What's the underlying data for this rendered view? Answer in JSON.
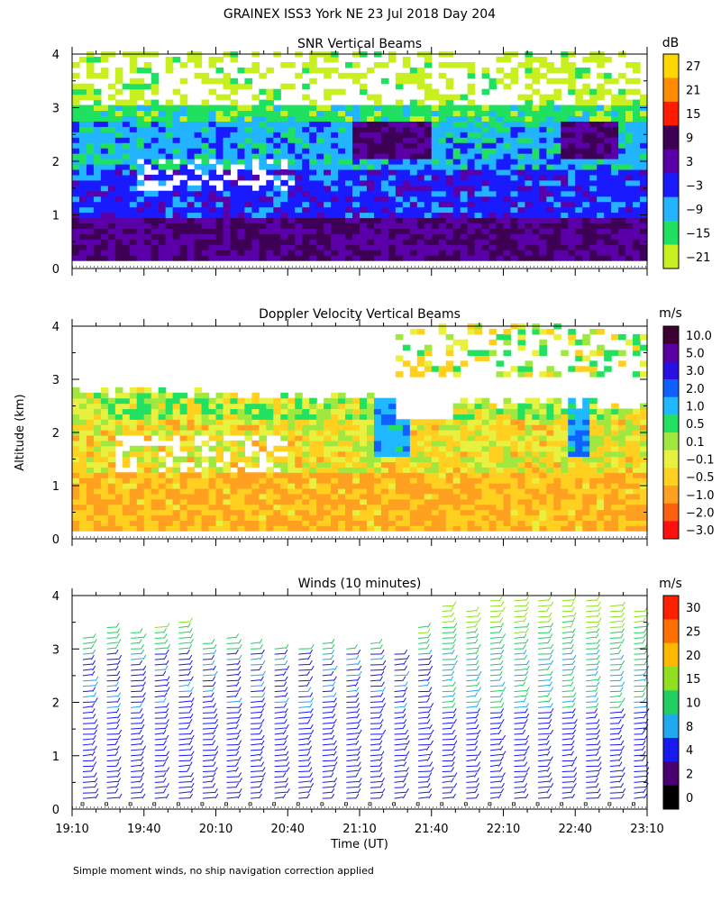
{
  "figure": {
    "title": "GRAINEX ISS3 York NE  23 Jul 2018 Day 204",
    "ylabel": "Altitude (km)",
    "xlabel": "Time (UT)",
    "footnote": "Simple moment winds, no ship navigation correction applied"
  },
  "chart_data": [
    {
      "type": "heatmap",
      "title": "SNR Vertical Beams",
      "x": {
        "range": [
          "19:10",
          "23:10"
        ],
        "ticks": [
          "19:10",
          "19:40",
          "20:10",
          "20:40",
          "21:10",
          "21:40",
          "22:10",
          "22:40",
          "23:10"
        ]
      },
      "y": {
        "range": [
          0,
          4
        ],
        "ticks": [
          "0",
          "1",
          "2",
          "3",
          "4"
        ],
        "unit": "km"
      },
      "colorbar": {
        "unit": "dB",
        "levels": [
          "27",
          "21",
          "15",
          "9",
          "3",
          "−3",
          "−9",
          "−15",
          "−21"
        ],
        "colors": [
          "#ffd700",
          "#ff8c00",
          "#ff1a00",
          "#3d0055",
          "#5b00a8",
          "#1a1aff",
          "#22b4ff",
          "#20e060",
          "#c8f020"
        ]
      },
      "bands": [
        {
          "alt_km": [
            0.15,
            0.9
          ],
          "snr_db": 6
        },
        {
          "alt_km": [
            0.9,
            1.8
          ],
          "snr_db": -3
        },
        {
          "alt_km": [
            1.8,
            2.7
          ],
          "snr_db": -9
        },
        {
          "alt_km": [
            2.7,
            3.0
          ],
          "snr_db": -15
        },
        {
          "alt_km": [
            3.0,
            4.0
          ],
          "snr_db": -21
        }
      ]
    },
    {
      "type": "heatmap",
      "title": "Doppler Velocity Vertical Beams",
      "x": {
        "range": [
          "19:10",
          "23:10"
        ]
      },
      "y": {
        "range": [
          0,
          4
        ],
        "ticks": [
          "0",
          "1",
          "2",
          "3",
          "4"
        ],
        "unit": "km"
      },
      "colorbar": {
        "unit": "m/s",
        "levels": [
          "10.0",
          "5.0",
          "3.0",
          "2.0",
          "1.0",
          "0.5",
          "0.1",
          "−0.1",
          "−0.5",
          "−1.0",
          "−2.0",
          "−3.0"
        ],
        "colors": [
          "#3d0030",
          "#5a00a0",
          "#2a10e0",
          "#1060ff",
          "#20b8ff",
          "#22e060",
          "#a0e840",
          "#e8f040",
          "#ffd020",
          "#ffa020",
          "#ff6010",
          "#ff1010"
        ]
      },
      "bands": [
        {
          "alt_km": [
            0.15,
            1.2
          ],
          "w_ms": -0.8
        },
        {
          "alt_km": [
            1.2,
            2.2
          ],
          "w_ms": -0.3
        },
        {
          "alt_km": [
            2.2,
            2.8
          ],
          "w_ms": 0.05
        }
      ]
    },
    {
      "type": "barbs",
      "title": "Winds (10 minutes)",
      "x": {
        "range": [
          "19:10",
          "23:10"
        ]
      },
      "y": {
        "range": [
          0,
          4
        ],
        "ticks": [
          "0",
          "1",
          "2",
          "3",
          "4"
        ],
        "unit": "km"
      },
      "colorbar": {
        "unit": "m/s",
        "levels": [
          "30",
          "25",
          "20",
          "15",
          "10",
          "8",
          "4",
          "2",
          "0"
        ],
        "colors": [
          "#ff2000",
          "#ff7000",
          "#ffb800",
          "#90e020",
          "#20d060",
          "#20a8f0",
          "#1818f0",
          "#4a0070",
          "#000000"
        ]
      },
      "profiles": [
        {
          "time": "19:10",
          "top_km": 3.3
        },
        {
          "time": "19:20",
          "top_km": 3.5
        },
        {
          "time": "19:30",
          "top_km": 3.4
        },
        {
          "time": "19:40",
          "top_km": 3.5
        },
        {
          "time": "19:50",
          "top_km": 3.6
        },
        {
          "time": "20:00",
          "top_km": 3.2
        },
        {
          "time": "20:10",
          "top_km": 3.3
        },
        {
          "time": "20:20",
          "top_km": 3.2
        },
        {
          "time": "20:30",
          "top_km": 3.1
        },
        {
          "time": "20:40",
          "top_km": 3.1
        },
        {
          "time": "20:50",
          "top_km": 3.2
        },
        {
          "time": "21:00",
          "top_km": 3.1
        },
        {
          "time": "21:10",
          "top_km": 3.2
        },
        {
          "time": "21:20",
          "top_km": 3.0
        },
        {
          "time": "21:30",
          "top_km": 3.5
        },
        {
          "time": "21:40",
          "top_km": 3.9
        },
        {
          "time": "21:50",
          "top_km": 3.8
        },
        {
          "time": "22:00",
          "top_km": 4.0
        },
        {
          "time": "22:10",
          "top_km": 4.0
        },
        {
          "time": "22:20",
          "top_km": 4.0
        },
        {
          "time": "22:30",
          "top_km": 4.0
        },
        {
          "time": "22:40",
          "top_km": 4.0
        },
        {
          "time": "22:50",
          "top_km": 3.9
        },
        {
          "time": "23:00",
          "top_km": 3.8
        }
      ]
    }
  ]
}
